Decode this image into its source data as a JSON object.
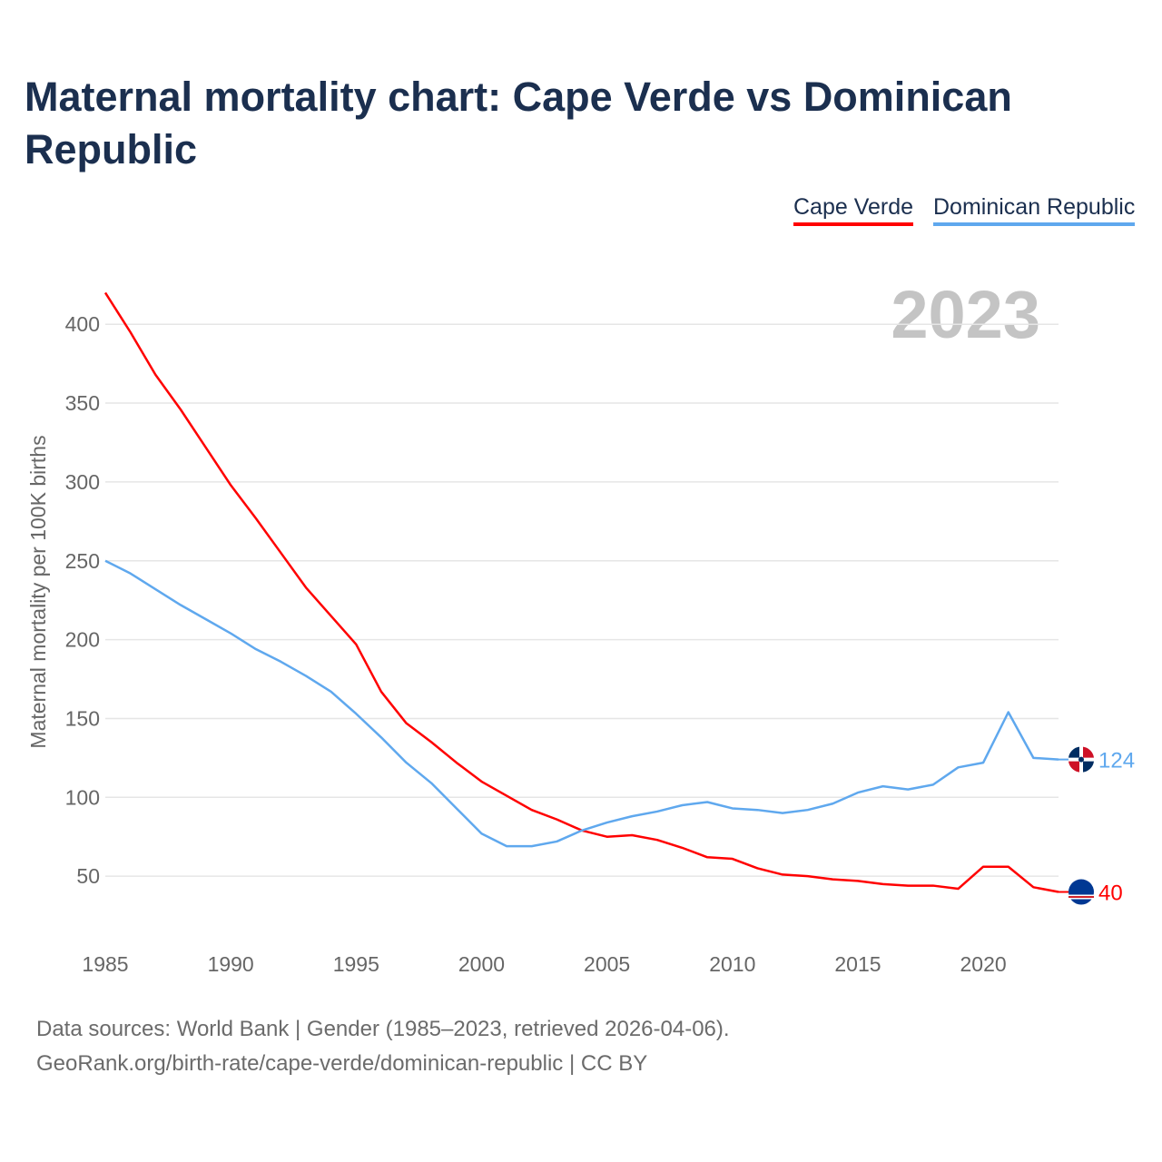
{
  "title": "Maternal mortality chart: Cape Verde vs Dominican Republic",
  "year_watermark": "2023",
  "legend": [
    {
      "label": "Cape Verde",
      "color": "#ff0000"
    },
    {
      "label": "Dominican Republic",
      "color": "#5fa8ee"
    }
  ],
  "footer": {
    "line1": "Data sources: World Bank | Gender (1985–2023, retrieved 2026-04-06).",
    "line2": "GeoRank.org/birth-rate/cape-verde/dominican-republic | CC BY"
  },
  "chart_data": {
    "type": "line",
    "title": "Maternal mortality chart: Cape Verde vs Dominican Republic",
    "xlabel": "",
    "ylabel": "Maternal mortality per 100K births",
    "xlim": [
      1985,
      2023
    ],
    "ylim": [
      0,
      420
    ],
    "xticks": [
      1985,
      1990,
      1995,
      2000,
      2005,
      2010,
      2015,
      2020
    ],
    "yticks": [
      50,
      100,
      150,
      200,
      250,
      300,
      350,
      400
    ],
    "grid": true,
    "legend_position": "top-right",
    "x": [
      1985,
      1986,
      1987,
      1988,
      1989,
      1990,
      1991,
      1992,
      1993,
      1994,
      1995,
      1996,
      1997,
      1998,
      1999,
      2000,
      2001,
      2002,
      2003,
      2004,
      2005,
      2006,
      2007,
      2008,
      2009,
      2010,
      2011,
      2012,
      2013,
      2014,
      2015,
      2016,
      2017,
      2018,
      2019,
      2020,
      2021,
      2022,
      2023
    ],
    "series": [
      {
        "name": "Cape Verde",
        "color": "#ff0000",
        "end_label": "40",
        "values": [
          420,
          395,
          368,
          346,
          322,
          298,
          277,
          255,
          233,
          215,
          197,
          167,
          147,
          135,
          122,
          110,
          101,
          92,
          86,
          79,
          75,
          76,
          73,
          68,
          62,
          61,
          55,
          51,
          50,
          48,
          47,
          45,
          44,
          44,
          42,
          56,
          56,
          43,
          40
        ]
      },
      {
        "name": "Dominican Republic",
        "color": "#5fa8ee",
        "end_label": "124",
        "values": [
          250,
          242,
          232,
          222,
          213,
          204,
          194,
          186,
          177,
          167,
          153,
          138,
          122,
          109,
          93,
          77,
          69,
          69,
          72,
          79,
          84,
          88,
          91,
          95,
          97,
          93,
          92,
          90,
          92,
          96,
          103,
          107,
          105,
          108,
          119,
          122,
          154,
          125,
          124
        ]
      }
    ]
  }
}
